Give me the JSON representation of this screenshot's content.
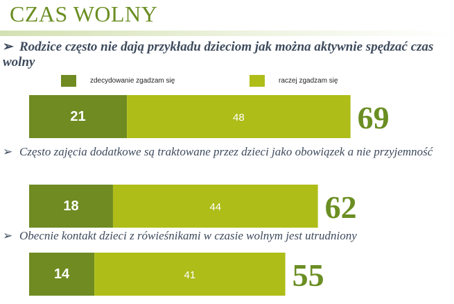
{
  "page": {
    "title": "CZAS WOLNY",
    "bullet_glyph": "➢"
  },
  "colors": {
    "strong": "#6f8b22",
    "rather": "#aebd18",
    "total": "#6b8e23",
    "title": "#6b8e23",
    "statement_text": "#3d4a5c"
  },
  "legend": [
    {
      "label": "zdecydowanie zgadzam się",
      "color": "#6f8b22"
    },
    {
      "label": "raczej zgadzam się",
      "color": "#aebd18"
    }
  ],
  "statements": [
    {
      "text": "Rodzice często nie dają przykładu dzieciom jak można aktywnie spędzać czas wolny"
    },
    {
      "text": "Często zajęcia dodatkowe są traktowane przez dzieci jako obowiązek a nie przyjemność"
    },
    {
      "text": "Obecnie kontakt dzieci z rówieśnikami w czasie wolnym jest utrudniony"
    }
  ],
  "chart_data": {
    "type": "bar",
    "orientation": "horizontal",
    "stacked": true,
    "categories": [
      "Rodzice często nie dają przykładu dzieciom jak można aktywnie spędzać czas wolny",
      "Często zajęcia dodatkowe są traktowane przez dzieci jako obowiązek a nie przyjemność",
      "Obecnie kontakt dzieci z rówieśnikami w czasie wolnym jest utrudniony"
    ],
    "series": [
      {
        "name": "zdecydowanie zgadzam się",
        "values": [
          21,
          18,
          14
        ]
      },
      {
        "name": "raczej zgadzam się",
        "values": [
          48,
          44,
          41
        ]
      }
    ],
    "totals": [
      69,
      62,
      55
    ],
    "xlim": [
      0,
      100
    ],
    "grid": false,
    "legend_position": "top"
  }
}
